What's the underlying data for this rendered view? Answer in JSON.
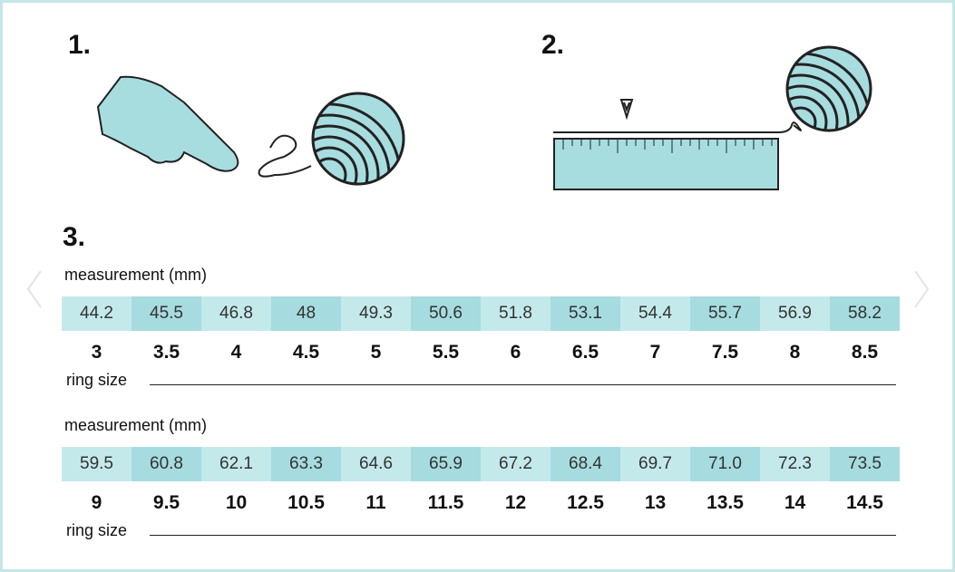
{
  "steps": {
    "one": "1.",
    "two": "2.",
    "three": "3."
  },
  "tables": [
    {
      "caption": "measurement (mm)",
      "measurements": [
        "44.2",
        "45.5",
        "46.8",
        "48",
        "49.3",
        "50.6",
        "51.8",
        "53.1",
        "54.4",
        "55.7",
        "56.9",
        "58.2"
      ],
      "sizes": [
        "3",
        "3.5",
        "4",
        "4.5",
        "5",
        "5.5",
        "6",
        "6.5",
        "7",
        "7.5",
        "8",
        "8.5"
      ],
      "footer": "ring size"
    },
    {
      "caption": "measurement (mm)",
      "measurements": [
        "59.5",
        "60.8",
        "62.1",
        "63.3",
        "64.6",
        "65.9",
        "67.2",
        "68.4",
        "69.7",
        "71.0",
        "72.3",
        "73.5"
      ],
      "sizes": [
        "9",
        "9.5",
        "10",
        "10.5",
        "11",
        "11.5",
        "12",
        "12.5",
        "13",
        "13.5",
        "14",
        "14.5"
      ],
      "footer": "ring size"
    }
  ]
}
